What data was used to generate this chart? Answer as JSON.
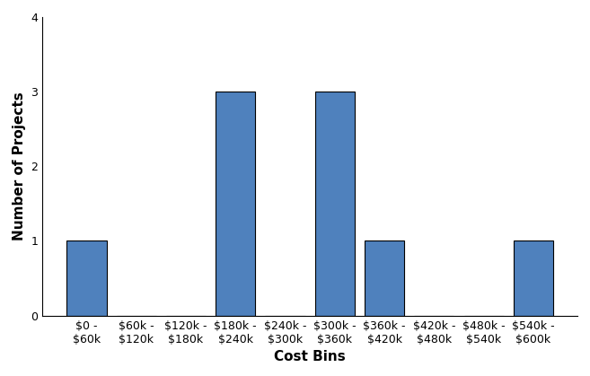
{
  "categories": [
    "$0 -\n$60k",
    "$60k -\n$120k",
    "$120k -\n$180k",
    "$180k -\n$240k",
    "$240k -\n$300k",
    "$300k -\n$360k",
    "$360k -\n$420k",
    "$420k -\n$480k",
    "$480k -\n$540k",
    "$540k -\n$600k"
  ],
  "values": [
    1,
    0,
    0,
    3,
    0,
    3,
    1,
    0,
    0,
    1
  ],
  "bar_color": "#4F81BD",
  "bar_edgecolor": "#000000",
  "xlabel": "Cost Bins",
  "ylabel": "Number of Projects",
  "ylim": [
    0,
    4
  ],
  "yticks": [
    0,
    1,
    2,
    3,
    4
  ],
  "xlabel_fontsize": 11,
  "ylabel_fontsize": 11,
  "tick_fontsize": 9,
  "background_color": "#ffffff",
  "spine_color": "#000000"
}
